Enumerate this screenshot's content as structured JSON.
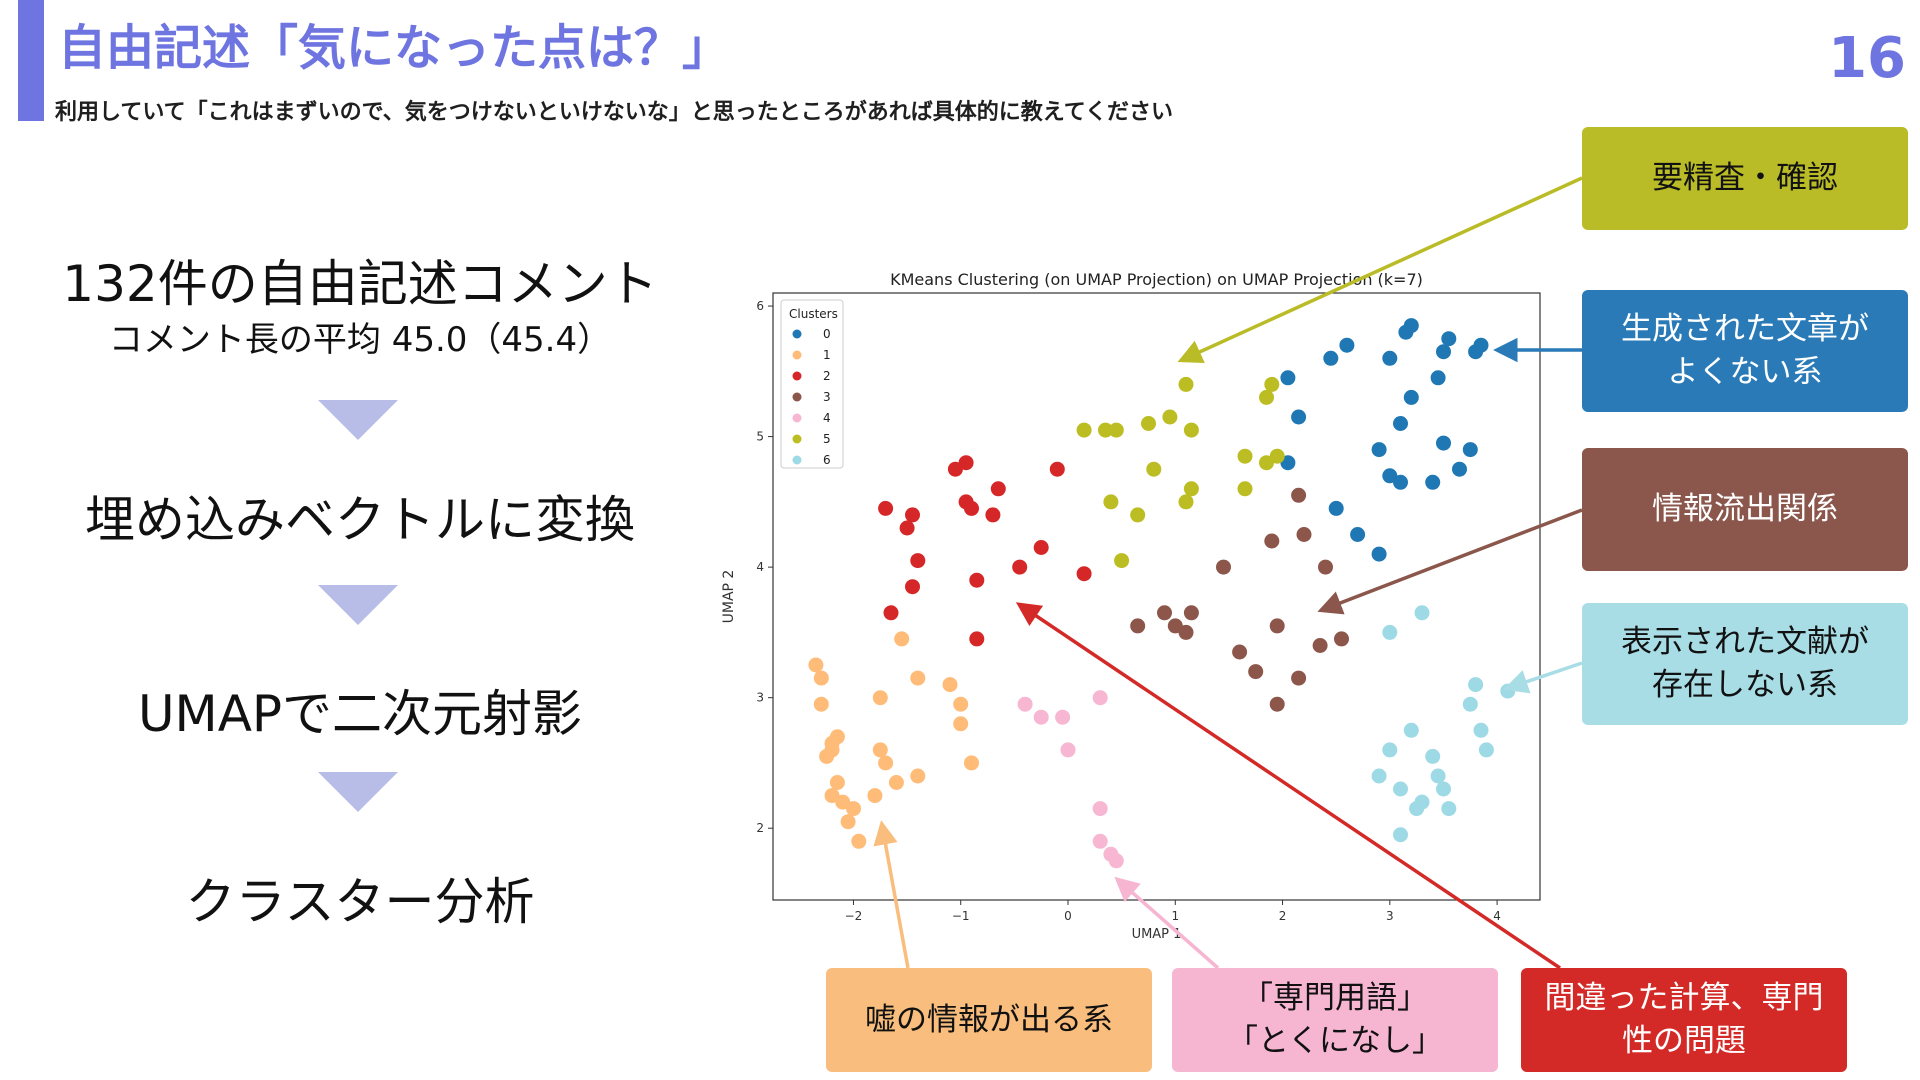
{
  "header": {
    "title": "自由記述「気になった点は？」",
    "subtitle": "利用していて「これはまずいので、気をつけないといけないな」と思ったところがあれば具体的に教えてください",
    "page_number": "16"
  },
  "flow": {
    "step1_title": "132件の自由記述コメント",
    "step1_sub": "コメント長の平均 45.0（45.4）",
    "step2": "埋め込みベクトルに変換",
    "step3": "UMAPで二次元射影",
    "step4": "クラスター分析"
  },
  "callouts": {
    "verify": "要精査・確認",
    "bad_text": "生成された文章が\nよくない系",
    "info_leak": "情報流出関係",
    "no_reference": "表示された文献が\n存在しない系",
    "false_info": "嘘の情報が出る系",
    "jargon": "「専門用語」\n「とくになし」",
    "calc_error": "間違った計算、専門\n性の問題"
  },
  "colors": {
    "accent": "#6f75e0",
    "verify": "#b9bc26",
    "bad_text": "#2a7ab7",
    "info_leak": "#8b564b",
    "no_reference": "#a8dde6",
    "false_info": "#f9be7d",
    "jargon": "#f6b6d2",
    "calc_error": "#d42a27"
  },
  "chart_data": {
    "type": "scatter",
    "title": "KMeans Clustering (on UMAP Projection) on UMAP Projection (k=7)",
    "xlabel": "UMAP 1",
    "ylabel": "UMAP 2",
    "xlim": [
      -2.75,
      4.4
    ],
    "ylim": [
      1.45,
      6.1
    ],
    "xticks": [
      -2,
      -1,
      0,
      1,
      2,
      3,
      4
    ],
    "yticks": [
      2,
      3,
      4,
      5,
      6
    ],
    "legend": {
      "title": "Clusters",
      "position": "top-left"
    },
    "series": [
      {
        "name": "0",
        "color": "#1f77b4",
        "points": [
          [
            2.15,
            5.15
          ],
          [
            2.05,
            5.45
          ],
          [
            2.05,
            4.8
          ],
          [
            2.45,
            5.6
          ],
          [
            2.6,
            5.7
          ],
          [
            2.5,
            4.45
          ],
          [
            2.7,
            4.25
          ],
          [
            2.9,
            4.1
          ],
          [
            2.9,
            4.9
          ],
          [
            3.0,
            5.6
          ],
          [
            3.0,
            4.7
          ],
          [
            3.1,
            4.65
          ],
          [
            3.1,
            5.1
          ],
          [
            3.15,
            5.8
          ],
          [
            3.2,
            5.85
          ],
          [
            3.2,
            5.3
          ],
          [
            3.4,
            4.65
          ],
          [
            3.45,
            5.45
          ],
          [
            3.5,
            5.65
          ],
          [
            3.5,
            4.95
          ],
          [
            3.55,
            5.75
          ],
          [
            3.65,
            4.75
          ],
          [
            3.75,
            4.9
          ],
          [
            3.8,
            5.65
          ],
          [
            3.85,
            5.7
          ]
        ]
      },
      {
        "name": "1",
        "color": "#ffbb78",
        "points": [
          [
            -2.35,
            3.25
          ],
          [
            -2.3,
            3.15
          ],
          [
            -2.3,
            2.95
          ],
          [
            -2.25,
            2.55
          ],
          [
            -2.2,
            2.65
          ],
          [
            -2.2,
            2.6
          ],
          [
            -2.15,
            2.7
          ],
          [
            -2.15,
            2.35
          ],
          [
            -2.2,
            2.25
          ],
          [
            -2.1,
            2.2
          ],
          [
            -2.05,
            2.05
          ],
          [
            -2.0,
            2.15
          ],
          [
            -1.95,
            1.9
          ],
          [
            -1.8,
            2.25
          ],
          [
            -1.75,
            2.6
          ],
          [
            -1.75,
            3.0
          ],
          [
            -1.7,
            2.5
          ],
          [
            -1.6,
            2.35
          ],
          [
            -1.55,
            3.45
          ],
          [
            -1.4,
            2.4
          ],
          [
            -1.4,
            3.15
          ],
          [
            -1.1,
            3.1
          ],
          [
            -1.0,
            2.95
          ],
          [
            -1.0,
            2.8
          ],
          [
            -0.9,
            2.5
          ]
        ]
      },
      {
        "name": "2",
        "color": "#d62728",
        "points": [
          [
            -1.7,
            4.45
          ],
          [
            -1.65,
            3.65
          ],
          [
            -1.5,
            4.3
          ],
          [
            -1.45,
            4.4
          ],
          [
            -1.45,
            3.85
          ],
          [
            -1.4,
            4.05
          ],
          [
            -1.05,
            4.75
          ],
          [
            -0.95,
            4.8
          ],
          [
            -0.95,
            4.5
          ],
          [
            -0.9,
            4.45
          ],
          [
            -0.85,
            3.9
          ],
          [
            -0.85,
            3.45
          ],
          [
            -0.7,
            4.4
          ],
          [
            -0.65,
            4.6
          ],
          [
            -0.45,
            4.0
          ],
          [
            -0.25,
            4.15
          ],
          [
            -0.1,
            4.75
          ],
          [
            0.15,
            3.95
          ]
        ]
      },
      {
        "name": "3",
        "color": "#8c564b",
        "points": [
          [
            0.65,
            3.55
          ],
          [
            0.9,
            3.65
          ],
          [
            1.0,
            3.55
          ],
          [
            1.1,
            3.5
          ],
          [
            1.15,
            3.65
          ],
          [
            1.45,
            4.0
          ],
          [
            1.6,
            3.35
          ],
          [
            1.75,
            3.2
          ],
          [
            1.9,
            4.2
          ],
          [
            1.95,
            3.55
          ],
          [
            1.95,
            2.95
          ],
          [
            2.15,
            3.15
          ],
          [
            2.15,
            4.55
          ],
          [
            2.2,
            4.25
          ],
          [
            2.35,
            3.4
          ],
          [
            2.4,
            4.0
          ],
          [
            2.55,
            3.45
          ]
        ]
      },
      {
        "name": "4",
        "color": "#f7b6d2",
        "points": [
          [
            -0.4,
            2.95
          ],
          [
            -0.25,
            2.85
          ],
          [
            -0.05,
            2.85
          ],
          [
            0.0,
            2.6
          ],
          [
            0.3,
            3.0
          ],
          [
            0.3,
            2.15
          ],
          [
            0.3,
            1.9
          ],
          [
            0.4,
            1.8
          ],
          [
            0.45,
            1.75
          ]
        ]
      },
      {
        "name": "5",
        "color": "#bcbd22",
        "points": [
          [
            0.15,
            5.05
          ],
          [
            0.35,
            5.05
          ],
          [
            0.45,
            5.05
          ],
          [
            0.4,
            4.5
          ],
          [
            0.5,
            4.05
          ],
          [
            0.65,
            4.4
          ],
          [
            0.75,
            5.1
          ],
          [
            0.8,
            4.75
          ],
          [
            0.95,
            5.15
          ],
          [
            1.1,
            4.5
          ],
          [
            1.1,
            5.4
          ],
          [
            1.15,
            5.05
          ],
          [
            1.15,
            4.6
          ],
          [
            1.65,
            4.6
          ],
          [
            1.65,
            4.85
          ],
          [
            1.85,
            5.3
          ],
          [
            1.85,
            4.8
          ],
          [
            1.9,
            5.4
          ],
          [
            1.95,
            4.85
          ]
        ]
      },
      {
        "name": "6",
        "color": "#9edae5",
        "points": [
          [
            3.0,
            3.5
          ],
          [
            3.3,
            3.65
          ],
          [
            2.9,
            2.4
          ],
          [
            3.0,
            2.6
          ],
          [
            3.1,
            2.3
          ],
          [
            3.1,
            1.95
          ],
          [
            3.2,
            2.75
          ],
          [
            3.25,
            2.15
          ],
          [
            3.3,
            2.2
          ],
          [
            3.4,
            2.55
          ],
          [
            3.45,
            2.4
          ],
          [
            3.5,
            2.3
          ],
          [
            3.55,
            2.15
          ],
          [
            3.75,
            2.95
          ],
          [
            3.8,
            3.1
          ],
          [
            3.85,
            2.75
          ],
          [
            3.9,
            2.6
          ],
          [
            4.1,
            3.05
          ]
        ]
      }
    ]
  }
}
